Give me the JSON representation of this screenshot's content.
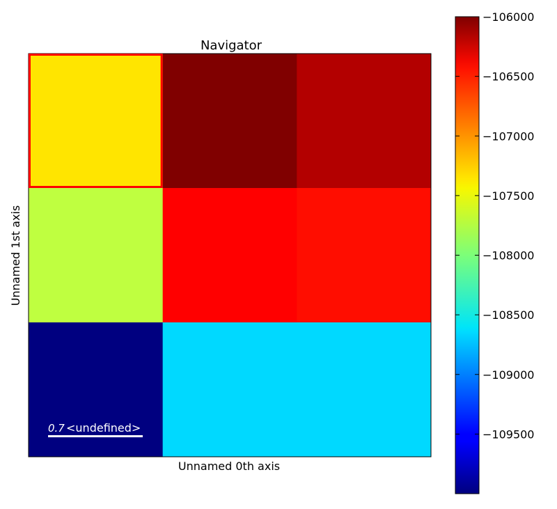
{
  "chart_data": {
    "type": "heatmap",
    "title": "Navigator",
    "xlabel": "Unnamed 0th axis",
    "ylabel": "Unnamed 1st axis",
    "grid": false,
    "colormap": "jet",
    "rows": 3,
    "cols": 3,
    "values": [
      [
        -107400,
        -106000,
        -106200
      ],
      [
        -107750,
        -106500,
        -106550
      ],
      [
        -110000,
        -108650,
        -108650
      ]
    ],
    "highlight_cell": {
      "row": 0,
      "col": 0,
      "color": "#ff0000"
    },
    "colorbar": {
      "vmin": -110000,
      "vmax": -106000,
      "ticks": [
        -106000,
        -106500,
        -107000,
        -107500,
        -108000,
        -108500,
        -109000,
        -109500
      ],
      "tick_labels": [
        "−106000",
        "−106500",
        "−107000",
        "−107500",
        "−108000",
        "−108500",
        "−109000",
        "−109500"
      ]
    },
    "scalebar": {
      "value_text": "0.7",
      "unit_text": "<undefined>",
      "color": "#ffffff"
    }
  }
}
